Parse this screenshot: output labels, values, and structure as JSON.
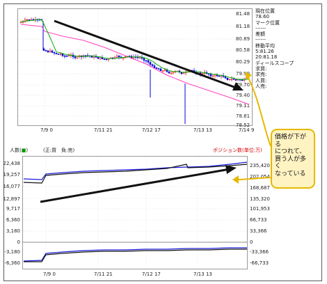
{
  "price_chart": {
    "y_labels": [
      "81.48",
      "81.18",
      "80.89",
      "80.58",
      "80.29",
      "79.99",
      "79.70",
      "79.40",
      "79.11",
      "78.81",
      "78.52"
    ],
    "x_labels": [
      "7/9 0",
      "7/11 21",
      "7/12 17",
      "7/13 13",
      "7/14 9"
    ]
  },
  "side_panel": {
    "current_price_label": "現在位置",
    "current_price_value": "78.60",
    "mark_label": "マーク位置",
    "mark_value": "------",
    "diff_label": "差額",
    "diff_value": "------",
    "ma_label": "移動平均",
    "ma_short": "5:81.26",
    "ma_long": "20:81.18",
    "ds_label": "ディールスコープ",
    "buy_label": "求買:",
    "sell_label": "求売:",
    "buyers_label": "人買:",
    "sellers_label": "人売:"
  },
  "position_chart": {
    "header_left_prefix": "人数",
    "header_left_icon": "(",
    "header_left_icon2": ")",
    "header_legend": "(正:買　負:売)",
    "header_right": "ポジション数(単位:万)",
    "left_labels": [
      "22,438",
      "19,257",
      "16,077",
      "12,897",
      "9,717",
      "6,360",
      "3,180",
      "0",
      "-3,180",
      "-6,360"
    ],
    "right_labels": [
      "235,420",
      "202,054",
      "168,687",
      "135,320",
      "101,953",
      "66,733",
      "33,366",
      "0",
      "-33,366",
      "-66,733"
    ],
    "x_labels": [
      "7/9 0",
      "7/11 21",
      "7/12 17",
      "7/13 13"
    ]
  },
  "callout": {
    "lines": [
      "価格が下がる",
      "につれて、",
      "買う人が多く",
      "なっている"
    ]
  },
  "colors": {
    "up_candle": "#d80000",
    "down_candle": "#0000d8",
    "ma_pink": "#ff40c0",
    "ma_green": "#00b000",
    "position_blue": "#1a1adc",
    "count_black": "#101010",
    "callout_fill": "#fff3c2",
    "callout_border": "#e6b800"
  }
}
